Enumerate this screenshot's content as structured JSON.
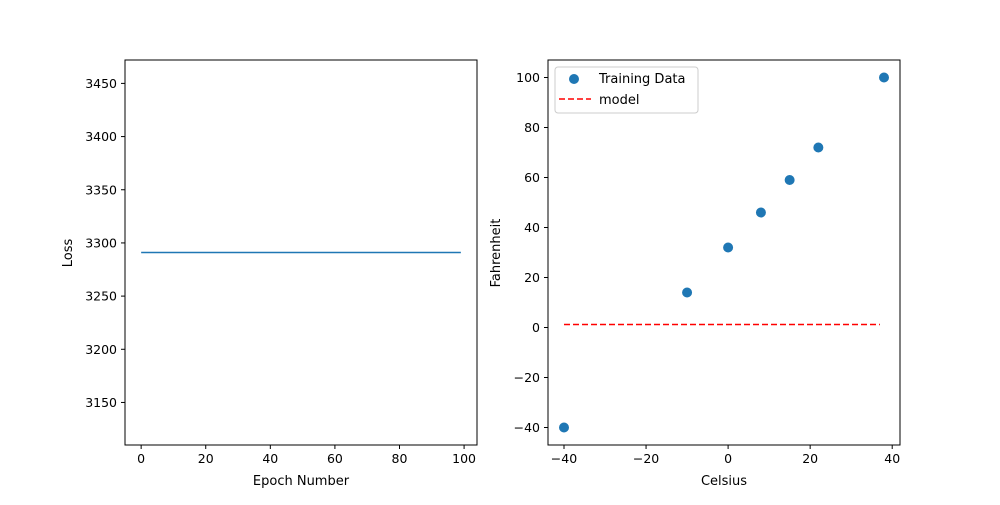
{
  "chart_data": [
    {
      "type": "line",
      "title": "",
      "xlabel": "Epoch Number",
      "ylabel": "Loss",
      "xlim": [
        -5,
        104
      ],
      "ylim": [
        3110,
        3472
      ],
      "xticks": [
        0,
        20,
        40,
        60,
        80,
        100
      ],
      "xtick_labels": [
        "0",
        "20",
        "40",
        "60",
        "80",
        "100"
      ],
      "yticks": [
        3150,
        3200,
        3250,
        3300,
        3350,
        3400,
        3450
      ],
      "ytick_labels": [
        "3150",
        "3200",
        "3250",
        "3300",
        "3350",
        "3400",
        "3450"
      ],
      "grid": false,
      "series": [
        {
          "x": [
            0,
            99
          ],
          "y": [
            3291,
            3291
          ],
          "color": "#1f77b4"
        }
      ]
    },
    {
      "type": "scatter",
      "title": "",
      "xlabel": "Celsius",
      "ylabel": "Fahrenheit",
      "xlim": [
        -43.9,
        41.9
      ],
      "ylim": [
        -47,
        107
      ],
      "xticks": [
        -40,
        -20,
        0,
        20,
        40
      ],
      "xtick_labels": [
        "−40",
        "−20",
        "0",
        "20",
        "40"
      ],
      "yticks": [
        -40,
        -20,
        0,
        20,
        40,
        60,
        80,
        100
      ],
      "ytick_labels": [
        "−40",
        "−20",
        "0",
        "20",
        "40",
        "60",
        "80",
        "100"
      ],
      "grid": false,
      "legend_position": "upper-left",
      "series": [
        {
          "name": "Training Data",
          "type": "scatter",
          "color": "#1f77b4",
          "x": [
            -40,
            -10,
            0,
            8,
            15,
            22,
            38
          ],
          "y": [
            -40,
            14,
            32,
            46,
            59,
            72,
            100
          ]
        },
        {
          "name": "model",
          "type": "line",
          "style": "dashed",
          "color": "#ff0000",
          "x": [
            -40,
            37
          ],
          "y": [
            1.2,
            1.2
          ]
        }
      ]
    }
  ]
}
